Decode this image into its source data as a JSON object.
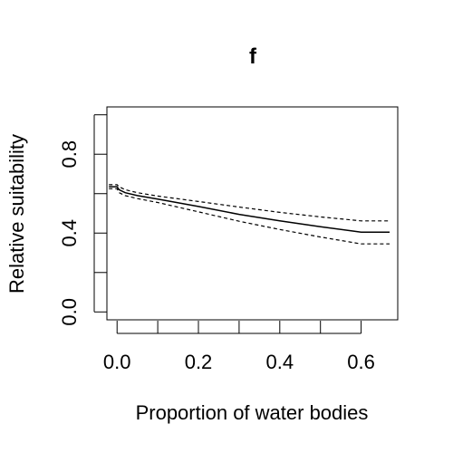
{
  "chart_data": {
    "type": "line",
    "title": "f",
    "xlabel": "Proportion of water bodies",
    "ylabel": "Relative suitability",
    "xlim": [
      -0.025,
      0.69
    ],
    "ylim": [
      -0.04,
      1.04
    ],
    "x_ticks": [
      0.0,
      0.2,
      0.4,
      0.6
    ],
    "x_tick_labels": [
      "0.0",
      "0.2",
      "0.4",
      "0.6"
    ],
    "y_ticks": [
      0.0,
      0.2,
      0.4,
      0.6,
      0.8,
      1.0
    ],
    "y_tick_labels": [
      "0.0",
      "",
      "0.4",
      "",
      "0.8",
      ""
    ],
    "grid": false,
    "series": [
      {
        "style": "solid",
        "color": "#000000",
        "x": [
          -0.02,
          0.0,
          0.005,
          0.02,
          0.05,
          0.1,
          0.2,
          0.3,
          0.4,
          0.5,
          0.6,
          0.67
        ],
        "y": [
          0.635,
          0.635,
          0.62,
          0.605,
          0.59,
          0.572,
          0.535,
          0.495,
          0.462,
          0.432,
          0.405,
          0.405
        ]
      },
      {
        "style": "dashed",
        "color": "#000000",
        "x": [
          -0.02,
          0.0,
          0.005,
          0.02,
          0.05,
          0.1,
          0.2,
          0.3,
          0.4,
          0.5,
          0.6,
          0.67
        ],
        "y": [
          0.645,
          0.645,
          0.635,
          0.62,
          0.605,
          0.588,
          0.56,
          0.532,
          0.505,
          0.482,
          0.462,
          0.462
        ]
      },
      {
        "style": "dashed",
        "color": "#000000",
        "x": [
          -0.02,
          0.0,
          0.005,
          0.02,
          0.05,
          0.1,
          0.2,
          0.3,
          0.4,
          0.5,
          0.6,
          0.67
        ],
        "y": [
          0.625,
          0.625,
          0.605,
          0.59,
          0.575,
          0.555,
          0.508,
          0.46,
          0.418,
          0.38,
          0.345,
          0.345
        ]
      }
    ]
  }
}
